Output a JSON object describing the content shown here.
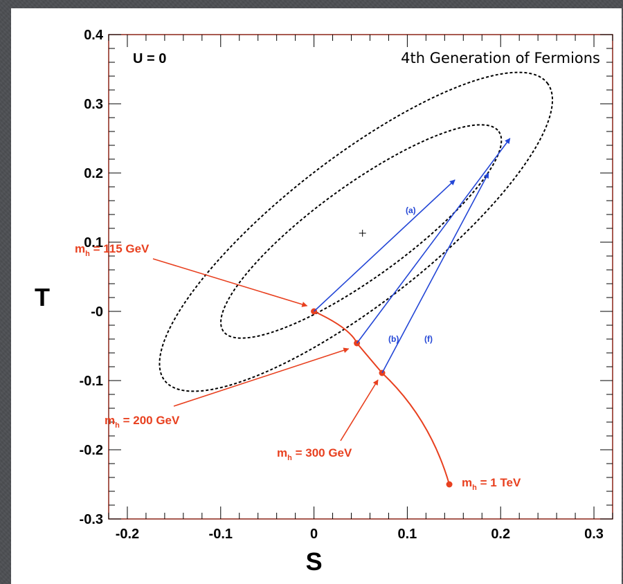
{
  "chart_data": {
    "type": "scatter",
    "title": "",
    "xlabel": "S",
    "ylabel": "T",
    "xlim": [
      -0.22,
      0.32
    ],
    "ylim": [
      -0.3,
      0.4
    ],
    "grid": false,
    "x_ticks": [
      "-0.2",
      "-0.1",
      "0",
      "0.1",
      "0.2",
      "0.3"
    ],
    "y_ticks": [
      "0.4",
      "0.3",
      "0.2",
      "0.1",
      "-0",
      "-0.1",
      "-0.2",
      "-0.3"
    ],
    "annotations": {
      "u_label": "U = 0",
      "generation_label": "4th Generation of Fermions"
    },
    "central_value": {
      "S": 0.052,
      "T": 0.113
    },
    "ellipses": [
      {
        "name": "inner",
        "center": [
          0.052,
          0.113
        ],
        "points": [
          [
            -0.097,
            -0.029
          ],
          [
            0.198,
            0.26
          ]
        ]
      },
      {
        "name": "outer",
        "center": [
          0.052,
          0.113
        ],
        "points": [
          [
            -0.16,
            -0.1
          ],
          [
            0.25,
            0.33
          ]
        ]
      }
    ],
    "higgs_curve": {
      "color": "#e8401f",
      "points": [
        [
          0.0,
          0.0
        ],
        [
          0.046,
          -0.046
        ],
        [
          0.073,
          -0.089
        ],
        [
          0.145,
          -0.25
        ]
      ],
      "labels": [
        {
          "prefix": "m",
          "sub": "h",
          "text": " = 115 GeV",
          "S": 0.0,
          "T": 0.0
        },
        {
          "prefix": "m",
          "sub": "h",
          "text": " = 200 GeV",
          "S": 0.046,
          "T": -0.046
        },
        {
          "prefix": "m",
          "sub": "h",
          "text": " = 300 GeV",
          "S": 0.073,
          "T": -0.089
        },
        {
          "prefix": "m",
          "sub": "h",
          "text": " = 1 TeV",
          "S": 0.145,
          "T": -0.25
        }
      ]
    },
    "series": [
      {
        "name": "(a)",
        "color": "#2346d6",
        "from": [
          0.0,
          0.0
        ],
        "to": [
          0.151,
          0.19
        ]
      },
      {
        "name": "(b)",
        "color": "#2346d6",
        "from": [
          0.046,
          -0.046
        ],
        "to": [
          0.21,
          0.25
        ]
      },
      {
        "name": "(f)",
        "color": "#2346d6",
        "from": [
          0.073,
          -0.089
        ],
        "to": [
          0.187,
          0.2
        ]
      }
    ]
  }
}
